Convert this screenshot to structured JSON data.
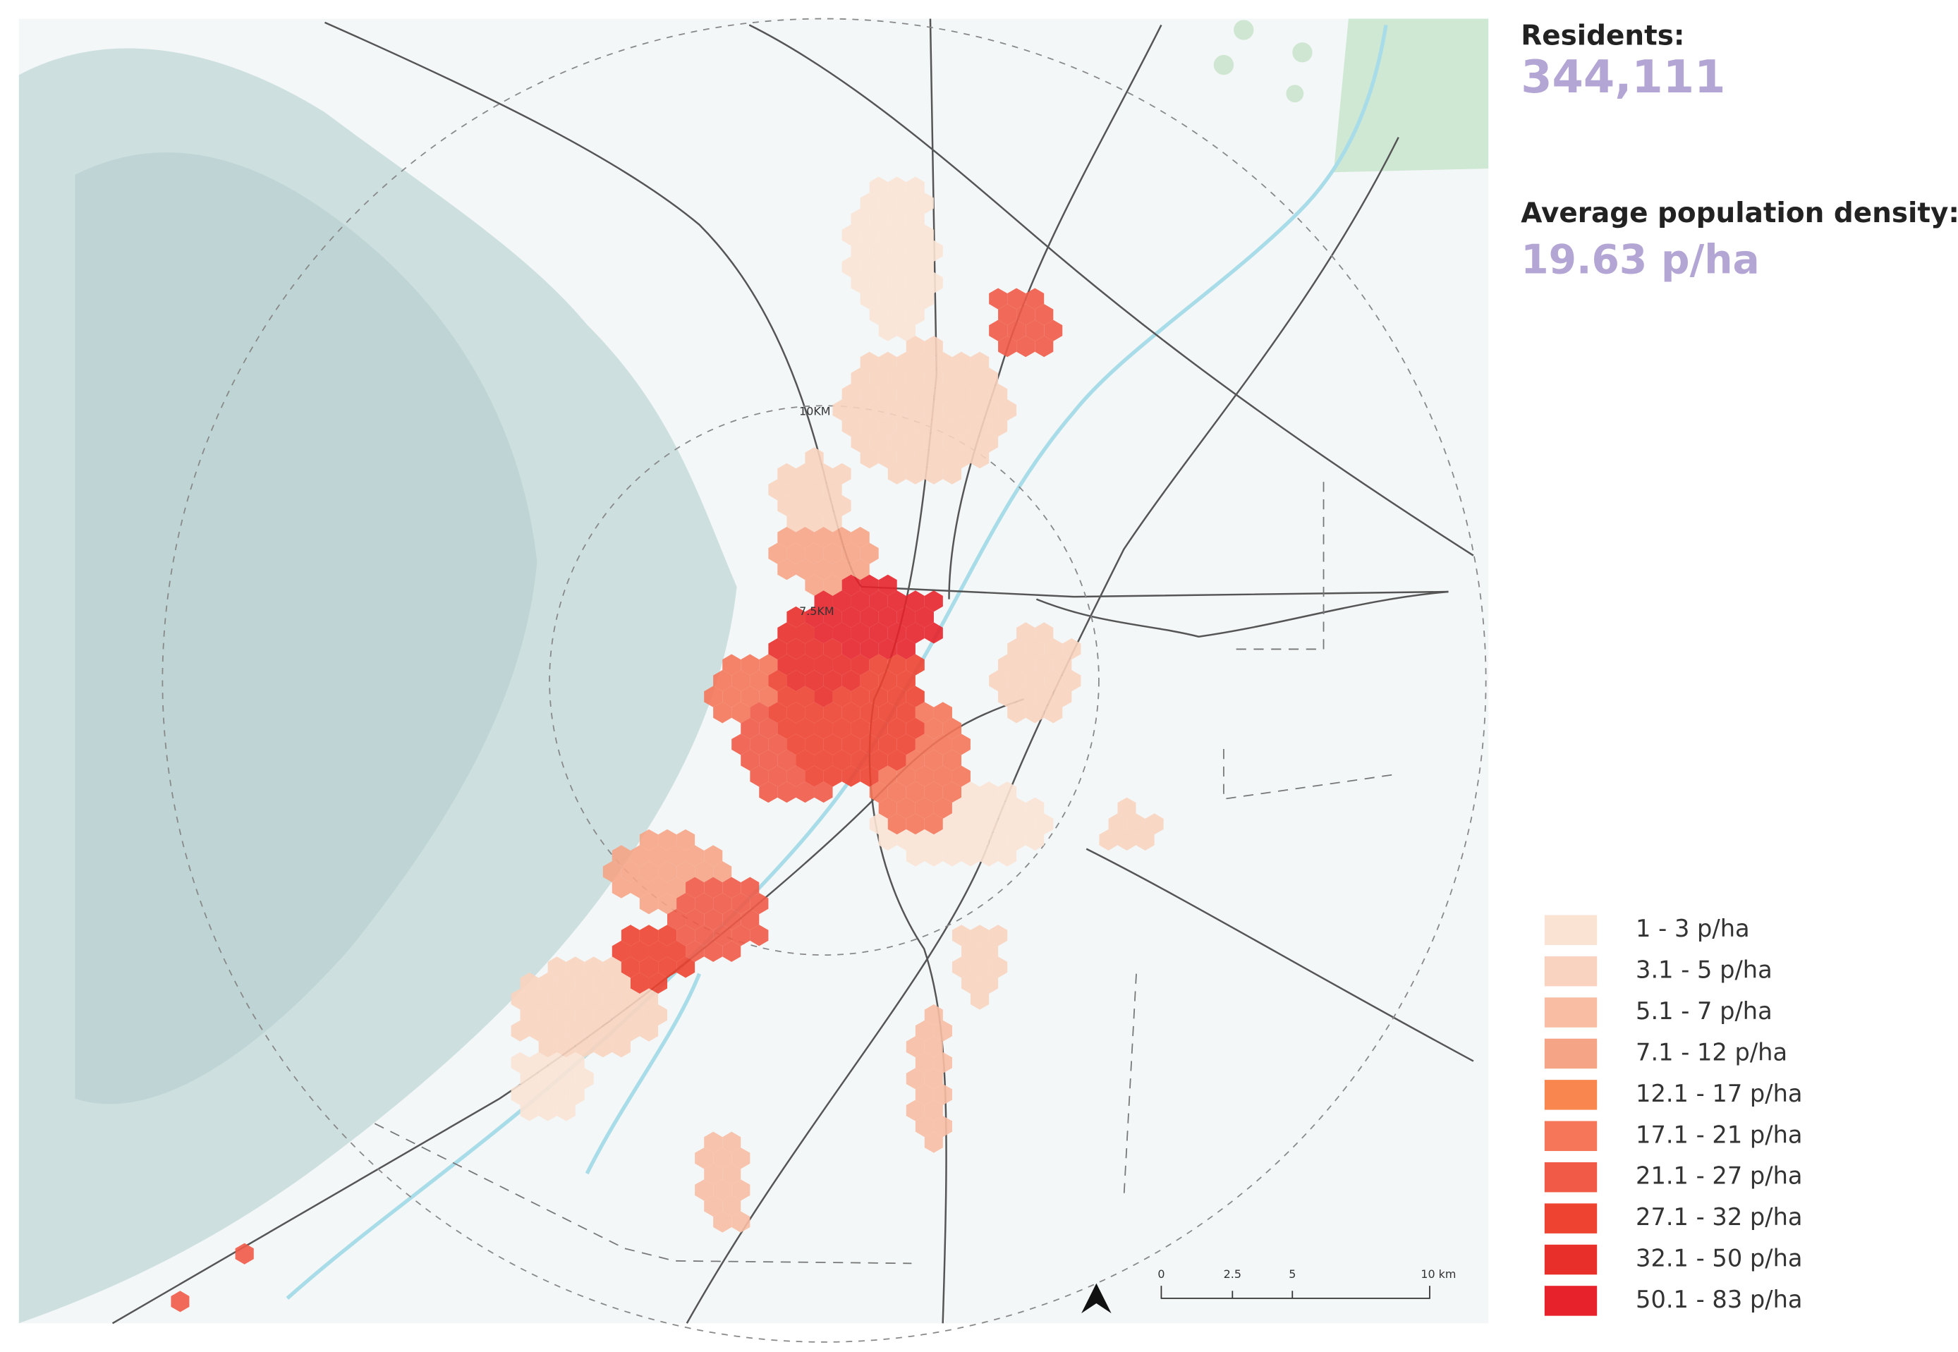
{
  "header": {
    "residents_label": "Residents:",
    "residents_value": "344,111",
    "density_label": "Average population density:",
    "density_value": "19.63 p/ha"
  },
  "map": {
    "ring_labels": [
      "10KM",
      "7.5KM"
    ]
  },
  "legend": {
    "items": [
      {
        "label": "1 - 3 p/ha",
        "color": "#fbe3d4"
      },
      {
        "label": "3.1 - 5 p/ha",
        "color": "#f9d3bf"
      },
      {
        "label": "5.1 - 7 p/ha",
        "color": "#f8bda3"
      },
      {
        "label": "7.1 - 12 p/ha",
        "color": "#f6a486"
      },
      {
        "label": "12.1 - 17 p/ha",
        "color": "#f8864e"
      },
      {
        "label": "17.1 - 21 p/ha",
        "color": "#f57659"
      },
      {
        "label": "21.1 - 27 p/ha",
        "color": "#f15a47"
      },
      {
        "label": "27.1 - 32 p/ha",
        "color": "#ee4330"
      },
      {
        "label": "32.1 - 50 p/ha",
        "color": "#e92f2a"
      },
      {
        "label": "50.1 - 83 p/ha",
        "color": "#e7222b"
      }
    ]
  },
  "scale_bar": {
    "labels": [
      "0",
      "2.5",
      "5",
      "10 km"
    ]
  }
}
